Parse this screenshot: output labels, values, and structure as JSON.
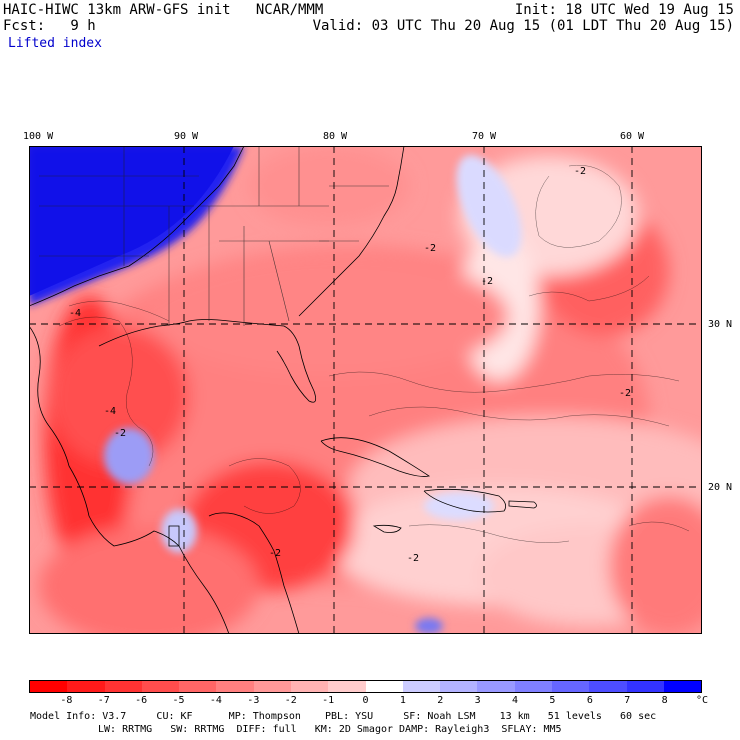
{
  "header": {
    "left_line1": "HAIC-HIWC 13km ARW-GFS init   NCAR/MMM",
    "left_line2": "Fcst:   9 h",
    "right_line1": "Init: 18 UTC Wed 19 Aug 15",
    "right_line2": "Valid: 03 UTC Thu 20 Aug 15 (01 LDT Thu 20 Aug 15)",
    "field": "Lifted index"
  },
  "map": {
    "lon_labels": [
      "100 W",
      "90 W",
      "80 W",
      "70 W",
      "60 W"
    ],
    "lat_labels": [
      "30 N",
      "20 N"
    ],
    "contour_labels": [
      "-2",
      "-4",
      "-2",
      "-2",
      "-2",
      "-2",
      "-2",
      "-4",
      "-2"
    ]
  },
  "colorbar": {
    "unit": "°C",
    "ticks": [
      "-8",
      "-7",
      "-6",
      "-5",
      "-4",
      "-3",
      "-2",
      "-1",
      "0",
      "1",
      "2",
      "3",
      "4",
      "5",
      "6",
      "7",
      "8"
    ],
    "colors": [
      "#ff0000",
      "#ff1a1a",
      "#ff3333",
      "#ff4d4d",
      "#ff6666",
      "#ff8080",
      "#ff9999",
      "#ffb3b3",
      "#ffcccc",
      "#ffffff",
      "#ccccff",
      "#b3b3ff",
      "#9999ff",
      "#8080ff",
      "#6666ff",
      "#4d4dff",
      "#3333ff",
      "#0000ff"
    ]
  },
  "footer": {
    "line1": "Model Info: V3.7     CU: KF      MP: Thompson    PBL: YSU     SF: Noah LSM    13 km   51 levels   60 sec",
    "line2": "LW: RRTMG   SW: RRTMG  DIFF: full   KM: 2D Smagor DAMP: Rayleigh3  SFLAY: MM5"
  }
}
